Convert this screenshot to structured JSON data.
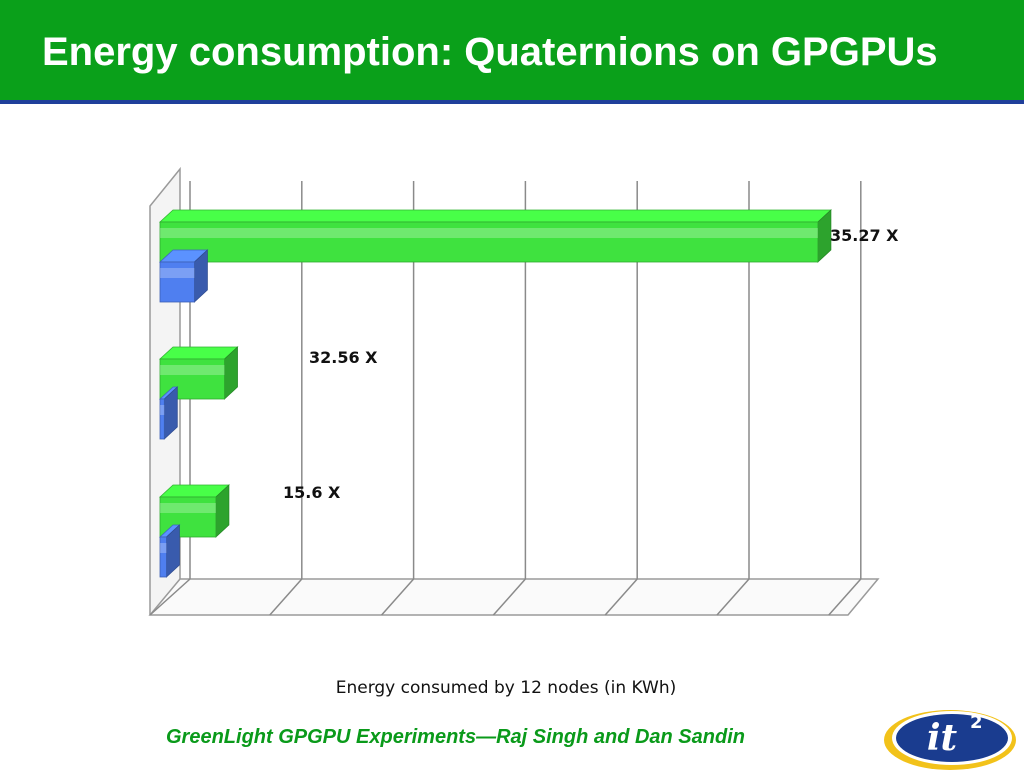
{
  "header": {
    "title": "Energy consumption: Quaternions on GPGPUs"
  },
  "footer": {
    "credit": "GreenLight  GPGPU Experiments—Raj Singh and Dan Sandin"
  },
  "logo": {
    "text": "it",
    "superscript": "2",
    "icon": "it2-logo"
  },
  "chart_data": {
    "type": "bar",
    "orientation": "horizontal",
    "style": "3d-clustered",
    "xlabel": "Energy consumed  by 12 nodes (in KWh)",
    "ylabel": "",
    "grid": true,
    "legend": "none",
    "categories": [
      "",
      "",
      ""
    ],
    "series": [
      {
        "color": "#3fe23f",
        "values": [
          1.3,
          1.5,
          15.3
        ],
        "labels": [
          "15.6 X",
          "32.56 X",
          "35.27 X"
        ]
      },
      {
        "color": "#4f7ff0",
        "values": [
          0.15,
          0.1,
          0.8
        ]
      }
    ],
    "xlim": [
      0,
      16
    ],
    "gridlines": [
      0,
      2.6,
      5.2,
      7.8,
      10.4,
      13,
      15.6
    ]
  }
}
